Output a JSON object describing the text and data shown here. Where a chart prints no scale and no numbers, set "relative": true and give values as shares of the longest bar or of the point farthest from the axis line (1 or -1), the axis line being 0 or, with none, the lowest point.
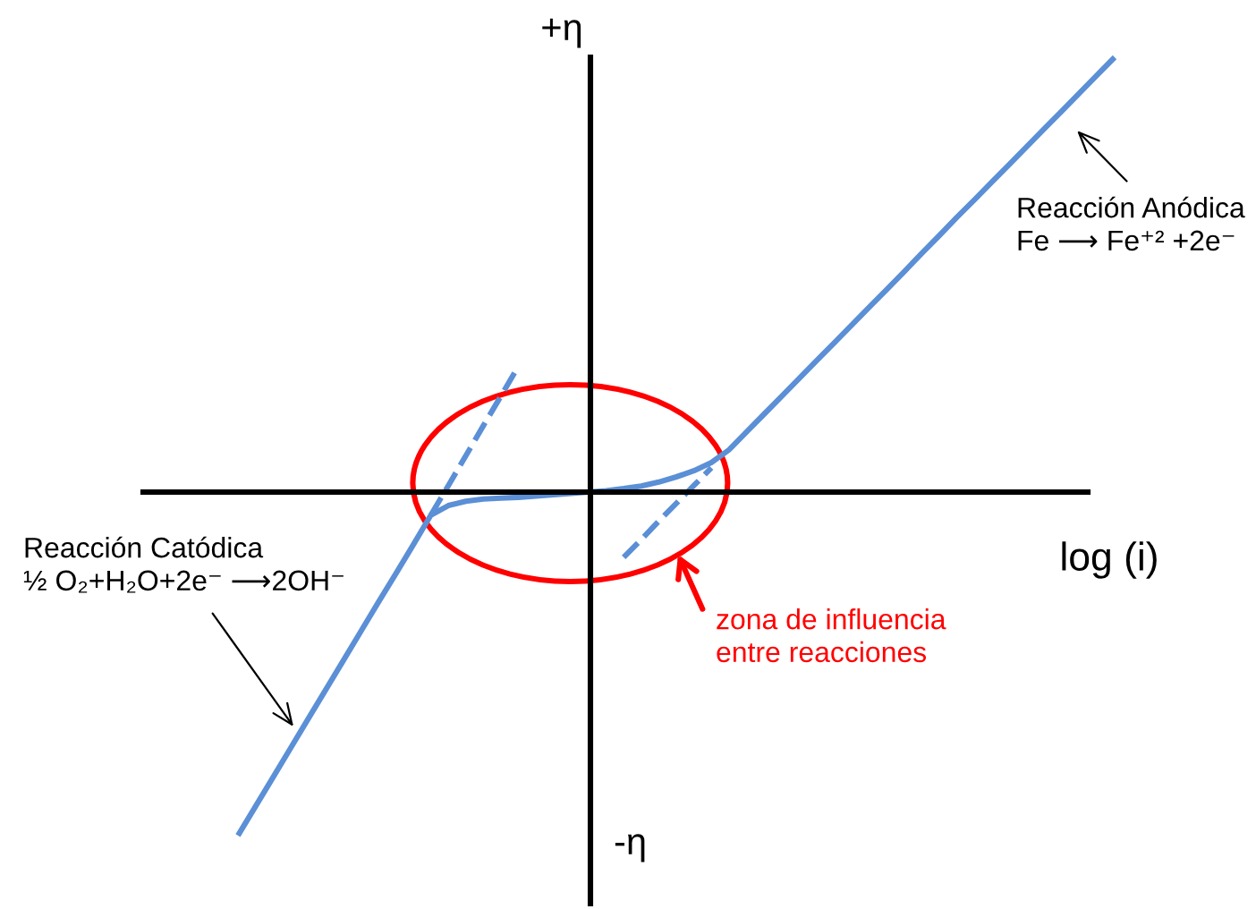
{
  "chart_data": {
    "type": "line",
    "relative": true,
    "tick_labels": false,
    "xlabel": "log (i)",
    "ylabel": "+η",
    "annotations": [
      "Reacción Anódica\nFe ⟶ Fe⁺² +2e⁻",
      "Reacción Catódica\n½ O₂+H₂O+2e⁻ ⟶2OH⁻",
      "zona de influencia\nentre reacciones",
      "-η"
    ],
    "categories": [
      null,
      null,
      null,
      null,
      null,
      null,
      null,
      null,
      null,
      null,
      null,
      null,
      null,
      null,
      null,
      null,
      null,
      null,
      null,
      null,
      null,
      null,
      null,
      null,
      null,
      null,
      null,
      null,
      null,
      null,
      null,
      null,
      null,
      null,
      null,
      null,
      null,
      null,
      null,
      null,
      null,
      null,
      null,
      null,
      null,
      null,
      null,
      null,
      null,
      null,
      null
    ],
    "series": [
      {
        "color": "#5b8fd6",
        "line_style": "solid",
        "values": [
          -0.79,
          -0.723,
          -0.656,
          -0.589,
          -0.522,
          -0.455,
          -0.388,
          -0.321,
          -0.254,
          -0.188,
          -0.121,
          -0.053,
          -0.031,
          -0.021,
          -0.016,
          -0.014,
          -0.012,
          -0.009,
          -0.006,
          -0.003,
          0,
          0.003,
          0.008,
          0.014,
          0.023,
          0.035,
          0.049,
          0.068,
          0.097,
          0.138,
          0.179,
          0.22,
          0.261,
          0.302,
          0.343,
          0.384,
          0.425,
          0.466,
          0.507,
          0.549,
          0.59,
          0.632,
          0.672,
          0.713,
          0.754,
          0.795,
          0.836,
          0.877,
          0.918,
          0.959,
          1.0
        ]
      },
      {
        "color": "#5b8fd6",
        "line_style": "dashed",
        "values": [
          null,
          null,
          null,
          null,
          null,
          null,
          null,
          null,
          null,
          null,
          null,
          -0.053,
          0.015,
          0.084,
          0.153,
          0.221,
          0.29,
          null,
          null,
          null,
          null,
          null,
          null,
          null,
          null,
          null,
          null,
          null,
          null,
          null,
          null,
          null,
          null,
          null,
          null,
          null,
          null,
          null,
          null,
          null,
          null,
          null,
          null,
          null,
          null,
          null,
          null,
          null,
          null,
          null,
          null
        ]
      },
      {
        "color": "#5b8fd6",
        "line_style": "dashed",
        "values": [
          null,
          null,
          null,
          null,
          null,
          null,
          null,
          null,
          null,
          null,
          null,
          null,
          null,
          null,
          null,
          null,
          null,
          null,
          null,
          null,
          null,
          null,
          -0.15,
          -0.109,
          -0.067,
          -0.026,
          0.015,
          0.056,
          null,
          null,
          null,
          null,
          null,
          null,
          null,
          null,
          null,
          null,
          null,
          null,
          null,
          null,
          null,
          null,
          null,
          null,
          null,
          null,
          null,
          null,
          null
        ]
      }
    ]
  }
}
